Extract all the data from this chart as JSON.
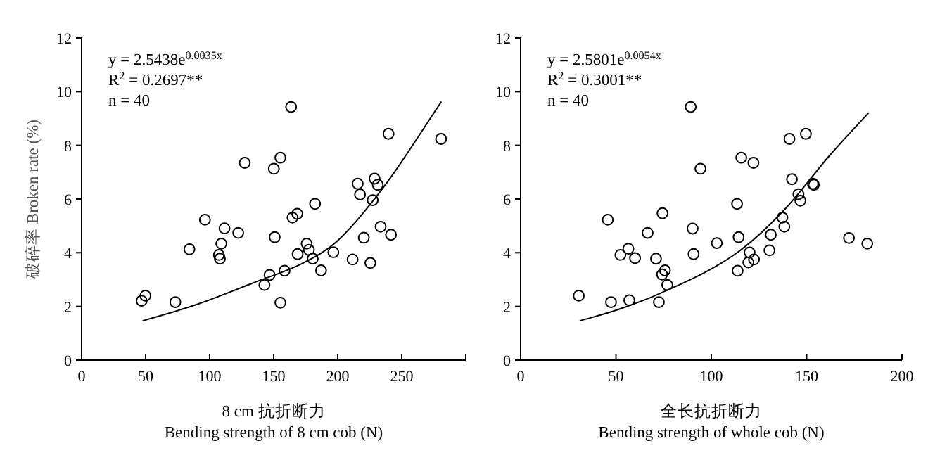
{
  "chart_data": [
    {
      "type": "scatter",
      "xlabel": "8 cm 抗折断力\nBending strength of 8 cm cob (N)",
      "ylabel": "破碎率 Broken rate (%)",
      "xlim": [
        0,
        300
      ],
      "ylim": [
        0,
        12
      ],
      "xticks": [
        0,
        50,
        100,
        150,
        200,
        250,
        {
          "value": 300,
          "label": null
        }
      ],
      "yticks": [
        0,
        2,
        4,
        6,
        8,
        10,
        12
      ],
      "marker": "circle",
      "annotations": [
        "y = 2.5438e$^{0.0035x}$",
        "R$^{2}$ = 0.2697**",
        "n = 40"
      ],
      "series": [
        {
          "type": "scatter",
          "color": "#000000",
          "x": [
            46.9,
            49.8,
            73.2,
            84.2,
            96.3,
            107.2,
            108,
            109.1,
            111.6,
            122.3,
            127.4,
            142.8,
            146.8,
            150.1,
            150.8,
            155.2,
            155.2,
            158.5,
            163.6,
            164.7,
            168.4,
            168.7,
            175.7,
            177.5,
            180.5,
            182.3,
            187.0,
            196.6,
            211.6,
            215.6,
            217.4,
            220.4,
            225.5,
            227.3,
            228.8,
            231.3,
            233.5,
            239.7,
            241.6,
            280.7
          ],
          "values": [
            2.21,
            2.4,
            2.16,
            4.13,
            5.23,
            3.92,
            3.78,
            4.34,
            4.91,
            4.74,
            7.35,
            2.8,
            3.17,
            7.13,
            4.58,
            7.54,
            2.14,
            3.33,
            9.43,
            5.31,
            5.45,
            3.95,
            4.34,
            4.11,
            3.78,
            5.82,
            3.34,
            4.02,
            3.75,
            6.57,
            6.17,
            4.56,
            3.62,
            5.96,
            6.76,
            6.53,
            4.97,
            8.43,
            4.67,
            8.24
          ]
        },
        {
          "type": "line",
          "color": "#000000",
          "marker": "none",
          "x": [
            47.6,
            89.7,
            133.6,
            173.9,
            199.5,
            236.1,
            281
          ],
          "values": [
            1.46,
            2.07,
            2.87,
            3.64,
            4.43,
            6.46,
            9.63
          ]
        }
      ]
    },
    {
      "type": "scatter",
      "xlabel": "全长抗折断力\nBending strength of whole cob (N)",
      "xlim": [
        0,
        200
      ],
      "ylim": [
        0,
        12
      ],
      "xticks": [
        0,
        50,
        100,
        150,
        200
      ],
      "yticks": [
        0,
        2,
        4,
        6,
        8,
        10,
        12
      ],
      "marker": "circle",
      "annotations": [
        "y = 2.5801e$^{0.0054x}$",
        "R$^{2}$ = 0.3001**",
        "n = 40"
      ],
      "series": [
        {
          "type": "scatter",
          "color": "#000000",
          "x": [
            30.5,
            47.4,
            57.0,
            45.7,
            52.3,
            56.5,
            60.0,
            66.6,
            71.0,
            72.5,
            74.2,
            74.4,
            75.7,
            76.9,
            89.2,
            90.2,
            90.7,
            94.3,
            102.9,
            113.5,
            113.8,
            114.3,
            115.7,
            119.4,
            120.1,
            122.1,
            122.4,
            130.5,
            131.2,
            137.3,
            138.3,
            141.0,
            142.3,
            145.7,
            146.7,
            149.6,
            153.3,
            153.8,
            172.2,
            181.8
          ],
          "values": [
            2.4,
            2.16,
            2.23,
            5.23,
            3.92,
            4.15,
            3.8,
            4.74,
            3.78,
            2.16,
            3.19,
            5.47,
            3.34,
            2.8,
            9.43,
            4.9,
            3.95,
            7.13,
            4.36,
            5.82,
            3.33,
            4.58,
            7.54,
            3.64,
            4.01,
            7.35,
            3.75,
            4.09,
            4.67,
            5.31,
            4.97,
            8.24,
            6.74,
            6.18,
            5.94,
            8.43,
            6.57,
            6.53,
            4.55,
            4.34
          ]
        },
        {
          "type": "line",
          "color": "#000000",
          "marker": "none",
          "x": [
            31.0,
            51.8,
            74.0,
            113.3,
            137.8,
            162.4,
            182.6
          ],
          "values": [
            1.46,
            1.9,
            2.51,
            3.99,
            5.56,
            7.65,
            9.22
          ]
        }
      ]
    }
  ]
}
